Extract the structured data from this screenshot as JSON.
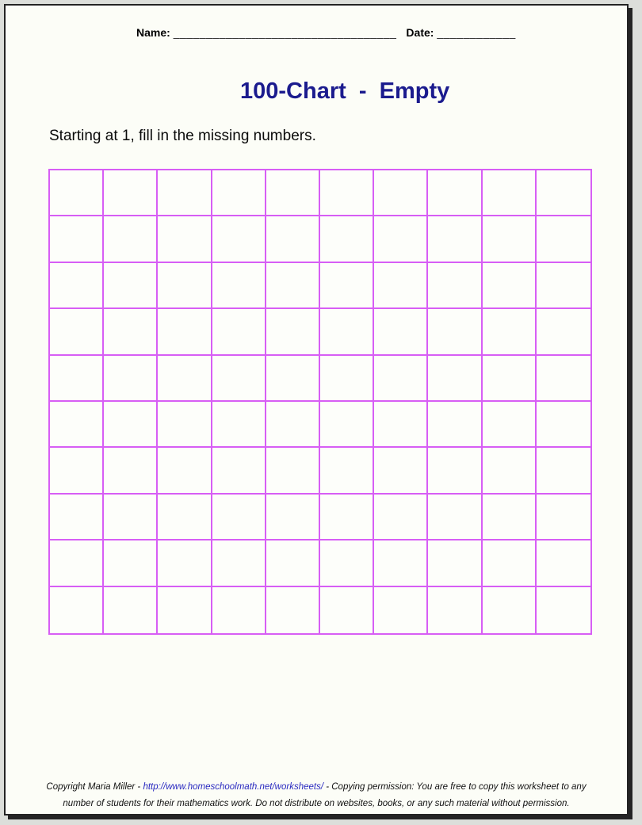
{
  "page": {
    "header": {
      "name_label": "Name:",
      "name_line": "__________________________________",
      "date_label": "Date:",
      "date_line": "____________"
    },
    "title": "100-Chart  -  Empty",
    "instruction": "Starting at 1, fill in the missing numbers.",
    "grid": {
      "rows": 10,
      "cols": 10,
      "cell_contents": "empty"
    },
    "footer": {
      "copyright_prefix": "Copyright Maria Miller - ",
      "link": "http://www.homeschoolmath.net/worksheets/",
      "line1_suffix": " - Copying permission: You are free to copy this worksheet to any",
      "line2": "number of students for their mathematics work. Do not distribute on websites, books, or any such material without permission."
    },
    "colors": {
      "title": "#1b1b8e",
      "grid_line": "#d75ef5",
      "link": "#2929c0",
      "page_bg": "#fcfdf7",
      "page_border": "#242424",
      "outer_bg": "#dcdeda"
    }
  }
}
